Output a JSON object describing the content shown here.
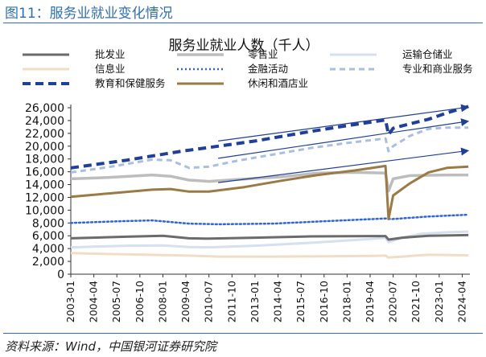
{
  "figure": {
    "title": "图11：服务业就业变化情况",
    "source": "资料来源：Wind，中国银河证券研究院"
  },
  "chart_data": {
    "type": "line",
    "title": "服务业就业人数（千人）",
    "xlabel": "",
    "ylabel": "",
    "ylim": [
      0,
      26000
    ],
    "yticks": [
      "0",
      "2,000",
      "4,000",
      "6,000",
      "8,000",
      "10,000",
      "12,000",
      "14,000",
      "16,000",
      "18,000",
      "20,000",
      "22,000",
      "24,000",
      "26,000"
    ],
    "xtick_labels": [
      "2003-01",
      "2004-04",
      "2005-07",
      "2006-10",
      "2008-01",
      "2009-04",
      "2010-07",
      "2011-10",
      "2013-01",
      "2014-04",
      "2015-07",
      "2016-10",
      "2018-01",
      "2019-04",
      "2020-07",
      "2021-10",
      "2023-01",
      "2024-04"
    ],
    "legend_position": "top",
    "grid": false,
    "annotations": "three blue trend arrows",
    "series": [
      {
        "name": "批发业",
        "color": "#6b6b6b",
        "style": "solid",
        "width": 3,
        "points": [
          [
            "2003-01",
            5600
          ],
          [
            "2006-01",
            5850
          ],
          [
            "2008-01",
            6000
          ],
          [
            "2009-06",
            5600
          ],
          [
            "2010-07",
            5550
          ],
          [
            "2013-01",
            5700
          ],
          [
            "2016-01",
            5900
          ],
          [
            "2019-04",
            5950
          ],
          [
            "2020-02",
            5950
          ],
          [
            "2020-04",
            5400
          ],
          [
            "2021-01",
            5700
          ],
          [
            "2022-06",
            6000
          ],
          [
            "2024-08",
            6100
          ]
        ]
      },
      {
        "name": "零售业",
        "color": "#bdbdbd",
        "style": "solid",
        "width": 3.5,
        "points": [
          [
            "2003-01",
            14900
          ],
          [
            "2005-01",
            15100
          ],
          [
            "2007-06",
            15500
          ],
          [
            "2008-06",
            15300
          ],
          [
            "2009-06",
            14700
          ],
          [
            "2010-07",
            14500
          ],
          [
            "2012-01",
            14800
          ],
          [
            "2014-06",
            15200
          ],
          [
            "2016-06",
            15800
          ],
          [
            "2018-06",
            15900
          ],
          [
            "2020-02",
            15800
          ],
          [
            "2020-04",
            13000
          ],
          [
            "2020-07",
            14900
          ],
          [
            "2021-06",
            15400
          ],
          [
            "2023-06",
            15500
          ],
          [
            "2024-08",
            15500
          ]
        ]
      },
      {
        "name": "运输仓储业",
        "color": "#d6e0ee",
        "style": "solid",
        "width": 3,
        "points": [
          [
            "2003-01",
            4200
          ],
          [
            "2006-01",
            4450
          ],
          [
            "2008-01",
            4500
          ],
          [
            "2009-06",
            4250
          ],
          [
            "2010-07",
            4200
          ],
          [
            "2013-01",
            4450
          ],
          [
            "2016-01",
            4900
          ],
          [
            "2019-04",
            5500
          ],
          [
            "2020-02",
            5700
          ],
          [
            "2020-04",
            5000
          ],
          [
            "2021-01",
            5700
          ],
          [
            "2022-01",
            6300
          ],
          [
            "2023-06",
            6550
          ],
          [
            "2024-08",
            6650
          ]
        ]
      },
      {
        "name": "信息业",
        "color": "#f2dcc6",
        "style": "solid",
        "width": 3,
        "points": [
          [
            "2003-01",
            3300
          ],
          [
            "2005-01",
            3150
          ],
          [
            "2007-01",
            3050
          ],
          [
            "2009-06",
            2900
          ],
          [
            "2011-01",
            2750
          ],
          [
            "2014-01",
            2750
          ],
          [
            "2017-01",
            2800
          ],
          [
            "2019-06",
            2850
          ],
          [
            "2020-02",
            2900
          ],
          [
            "2020-04",
            2600
          ],
          [
            "2021-01",
            2750
          ],
          [
            "2022-06",
            3050
          ],
          [
            "2023-06",
            3000
          ],
          [
            "2024-08",
            2950
          ]
        ]
      },
      {
        "name": "金融活动",
        "color": "#2f63e0",
        "style": "dotted",
        "width": 2.5,
        "points": [
          [
            "2003-01",
            8000
          ],
          [
            "2006-01",
            8300
          ],
          [
            "2007-06",
            8400
          ],
          [
            "2009-06",
            7900
          ],
          [
            "2011-01",
            7800
          ],
          [
            "2014-01",
            7900
          ],
          [
            "2017-01",
            8300
          ],
          [
            "2020-02",
            8700
          ],
          [
            "2020-06",
            8600
          ],
          [
            "2022-06",
            9000
          ],
          [
            "2024-08",
            9300
          ]
        ]
      },
      {
        "name": "专业和商业服务",
        "color": "#a9bfe0",
        "style": "dashed",
        "width": 3,
        "points": [
          [
            "2003-01",
            15900
          ],
          [
            "2005-01",
            16700
          ],
          [
            "2007-06",
            17900
          ],
          [
            "2008-06",
            17800
          ],
          [
            "2009-06",
            16600
          ],
          [
            "2010-07",
            16800
          ],
          [
            "2012-01",
            17700
          ],
          [
            "2014-01",
            18700
          ],
          [
            "2016-01",
            19700
          ],
          [
            "2018-01",
            20500
          ],
          [
            "2020-02",
            21200
          ],
          [
            "2020-04",
            19200
          ],
          [
            "2020-07",
            20000
          ],
          [
            "2021-06",
            21600
          ],
          [
            "2022-06",
            22700
          ],
          [
            "2023-06",
            22900
          ],
          [
            "2024-08",
            22900
          ]
        ]
      },
      {
        "name": "教育和保健服务",
        "color": "#1f3f99",
        "style": "dashed",
        "width": 4,
        "points": [
          [
            "2003-01",
            16600
          ],
          [
            "2006-01",
            17800
          ],
          [
            "2009-01",
            19200
          ],
          [
            "2010-07",
            19800
          ],
          [
            "2013-01",
            20800
          ],
          [
            "2016-01",
            22300
          ],
          [
            "2018-01",
            23200
          ],
          [
            "2020-02",
            24100
          ],
          [
            "2020-04",
            21800
          ],
          [
            "2020-07",
            22800
          ],
          [
            "2021-06",
            23500
          ],
          [
            "2022-06",
            24200
          ],
          [
            "2023-06",
            25200
          ],
          [
            "2024-08",
            26200
          ]
        ]
      },
      {
        "name": "休闲和酒店业",
        "color": "#9c7a45",
        "style": "solid",
        "width": 3,
        "points": [
          [
            "2003-01",
            12100
          ],
          [
            "2005-01",
            12600
          ],
          [
            "2007-06",
            13200
          ],
          [
            "2008-06",
            13300
          ],
          [
            "2009-06",
            12900
          ],
          [
            "2010-07",
            12900
          ],
          [
            "2012-06",
            13600
          ],
          [
            "2014-06",
            14600
          ],
          [
            "2016-06",
            15500
          ],
          [
            "2018-06",
            16200
          ],
          [
            "2020-02",
            16900
          ],
          [
            "2020-04",
            8600
          ],
          [
            "2020-07",
            12300
          ],
          [
            "2021-06",
            14200
          ],
          [
            "2022-06",
            15900
          ],
          [
            "2023-06",
            16600
          ],
          [
            "2024-08",
            16800
          ]
        ]
      }
    ]
  }
}
